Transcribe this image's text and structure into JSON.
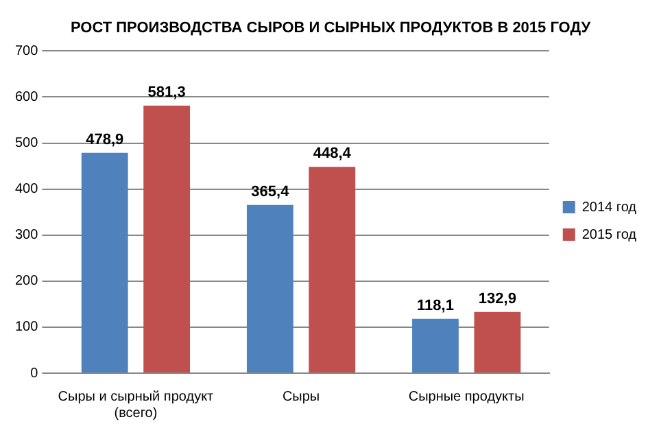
{
  "chart_data": {
    "type": "bar",
    "title": "РОСТ ПРОИЗВОДСТВА СЫРОВ И СЫРНЫХ ПРОДУКТОВ В 2015 ГОДУ",
    "categories": [
      "Сыры и сырный продукт (всего)",
      "Сыры",
      "Сырные продукты"
    ],
    "series": [
      {
        "name": "2014 год",
        "color": "#4f81bd",
        "values": [
          478.9,
          365.4,
          118.1
        ],
        "value_labels": [
          "478,9",
          "365,4",
          "118,1"
        ]
      },
      {
        "name": "2015 год",
        "color": "#c0504d",
        "values": [
          581.3,
          448.4,
          132.9
        ],
        "value_labels": [
          "581,3",
          "448,4",
          "132,9"
        ]
      }
    ],
    "ylim": [
      0,
      700
    ],
    "yticks": [
      0,
      100,
      200,
      300,
      400,
      500,
      600,
      700
    ],
    "grid": "y",
    "legend": "right"
  }
}
